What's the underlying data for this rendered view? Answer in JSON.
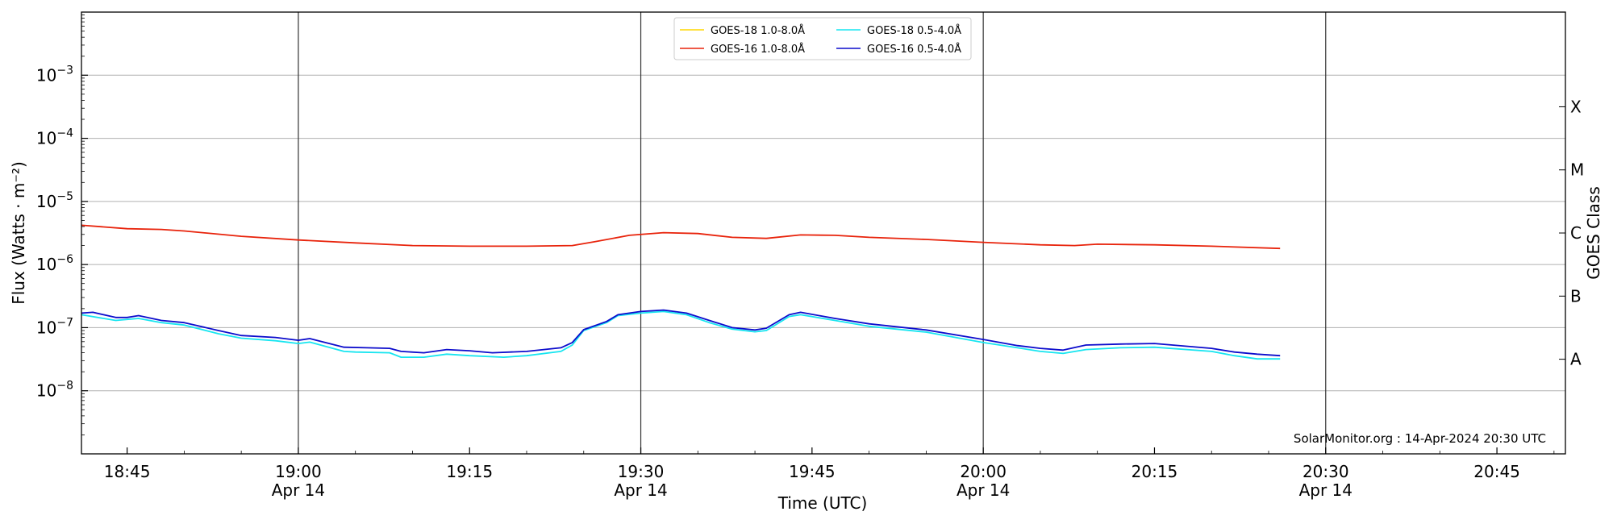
{
  "chart_data": {
    "type": "line",
    "xlabel": "Time (UTC)",
    "ylabel": "Flux (Watts · m⁻²)",
    "y2label": "GOES Class",
    "yscale": "log",
    "xlim": [
      "18:41",
      "20:51"
    ],
    "ylim": [
      1e-09,
      0.01
    ],
    "grid": {
      "y": true,
      "x_vertical_markers": [
        "19:00",
        "19:30",
        "20:00",
        "20:30"
      ]
    },
    "legend": {
      "placement": "top-center",
      "columns": 2
    },
    "x_ticks": [
      {
        "time": "18:45",
        "label": "18:45",
        "date": ""
      },
      {
        "time": "19:00",
        "label": "19:00",
        "date": "Apr 14"
      },
      {
        "time": "19:15",
        "label": "19:15",
        "date": ""
      },
      {
        "time": "19:30",
        "label": "19:30",
        "date": "Apr 14"
      },
      {
        "time": "19:45",
        "label": "19:45",
        "date": ""
      },
      {
        "time": "20:00",
        "label": "20:00",
        "date": "Apr 14"
      },
      {
        "time": "20:15",
        "label": "20:15",
        "date": ""
      },
      {
        "time": "20:30",
        "label": "20:30",
        "date": "Apr 14"
      },
      {
        "time": "20:45",
        "label": "20:45",
        "date": ""
      }
    ],
    "y_ticks": [
      {
        "value": 1e-08,
        "base": "10",
        "exp": "−8"
      },
      {
        "value": 1e-07,
        "base": "10",
        "exp": "−7"
      },
      {
        "value": 1e-06,
        "base": "10",
        "exp": "−6"
      },
      {
        "value": 1e-05,
        "base": "10",
        "exp": "−5"
      },
      {
        "value": 0.0001,
        "base": "10",
        "exp": "−4"
      },
      {
        "value": 0.001,
        "base": "10",
        "exp": "−3"
      }
    ],
    "goes_classes": [
      {
        "label": "A",
        "value": 3.16e-08
      },
      {
        "label": "B",
        "value": 3.16e-07
      },
      {
        "label": "C",
        "value": 3.16e-06
      },
      {
        "label": "M",
        "value": 3.16e-05
      },
      {
        "label": "X",
        "value": 0.000316
      }
    ],
    "annotation": "SolarMonitor.org : 14-Apr-2024 20:30 UTC",
    "series": [
      {
        "name": "GOES-18 1.0-8.0Å",
        "color": "#ffd700",
        "points": []
      },
      {
        "name": "GOES-16 1.0-8.0Å",
        "color": "#e8230b",
        "points": [
          [
            "18:41",
            4.2e-06
          ],
          [
            "18:45",
            3.7e-06
          ],
          [
            "18:48",
            3.6e-06
          ],
          [
            "18:50",
            3.4e-06
          ],
          [
            "18:55",
            2.8e-06
          ],
          [
            "19:00",
            2.45e-06
          ],
          [
            "19:05",
            2.2e-06
          ],
          [
            "19:10",
            2e-06
          ],
          [
            "19:15",
            1.95e-06
          ],
          [
            "19:20",
            1.95e-06
          ],
          [
            "19:24",
            2e-06
          ],
          [
            "19:26",
            2.3e-06
          ],
          [
            "19:29",
            2.9e-06
          ],
          [
            "19:32",
            3.2e-06
          ],
          [
            "19:35",
            3.1e-06
          ],
          [
            "19:38",
            2.7e-06
          ],
          [
            "19:41",
            2.6e-06
          ],
          [
            "19:44",
            2.95e-06
          ],
          [
            "19:47",
            2.9e-06
          ],
          [
            "19:50",
            2.7e-06
          ],
          [
            "19:55",
            2.5e-06
          ],
          [
            "20:00",
            2.25e-06
          ],
          [
            "20:05",
            2.05e-06
          ],
          [
            "20:08",
            2e-06
          ],
          [
            "20:10",
            2.1e-06
          ],
          [
            "20:15",
            2.05e-06
          ],
          [
            "20:20",
            1.95e-06
          ],
          [
            "20:26",
            1.8e-06
          ]
        ]
      },
      {
        "name": "GOES-18 0.5-4.0Å",
        "color": "#17e5f0",
        "points": [
          [
            "18:41",
            1.6e-07
          ],
          [
            "18:44",
            1.3e-07
          ],
          [
            "18:46",
            1.4e-07
          ],
          [
            "18:48",
            1.2e-07
          ],
          [
            "18:50",
            1.1e-07
          ],
          [
            "18:53",
            8e-08
          ],
          [
            "18:55",
            6.8e-08
          ],
          [
            "18:58",
            6.2e-08
          ],
          [
            "19:00",
            5.6e-08
          ],
          [
            "19:01",
            5.9e-08
          ],
          [
            "19:04",
            4.2e-08
          ],
          [
            "19:05",
            4.1e-08
          ],
          [
            "19:08",
            4e-08
          ],
          [
            "19:09",
            3.4e-08
          ],
          [
            "19:11",
            3.4e-08
          ],
          [
            "19:13",
            3.8e-08
          ],
          [
            "19:15",
            3.6e-08
          ],
          [
            "19:18",
            3.4e-08
          ],
          [
            "19:20",
            3.6e-08
          ],
          [
            "19:23",
            4.2e-08
          ],
          [
            "19:24",
            5.3e-08
          ],
          [
            "19:25",
            9e-08
          ],
          [
            "19:27",
            1.2e-07
          ],
          [
            "19:28",
            1.55e-07
          ],
          [
            "19:30",
            1.7e-07
          ],
          [
            "19:32",
            1.8e-07
          ],
          [
            "19:34",
            1.6e-07
          ],
          [
            "19:36",
            1.2e-07
          ],
          [
            "19:38",
            9.5e-08
          ],
          [
            "19:40",
            8.6e-08
          ],
          [
            "19:41",
            9e-08
          ],
          [
            "19:43",
            1.5e-07
          ],
          [
            "19:44",
            1.6e-07
          ],
          [
            "19:47",
            1.3e-07
          ],
          [
            "19:50",
            1.05e-07
          ],
          [
            "19:55",
            8.5e-08
          ],
          [
            "20:00",
            5.8e-08
          ],
          [
            "20:03",
            4.8e-08
          ],
          [
            "20:05",
            4.2e-08
          ],
          [
            "20:07",
            3.9e-08
          ],
          [
            "20:09",
            4.5e-08
          ],
          [
            "20:12",
            4.8e-08
          ],
          [
            "20:15",
            4.9e-08
          ],
          [
            "20:20",
            4.2e-08
          ],
          [
            "20:22",
            3.6e-08
          ],
          [
            "20:24",
            3.2e-08
          ],
          [
            "20:26",
            3.2e-08
          ]
        ]
      },
      {
        "name": "GOES-16 0.5-4.0Å",
        "color": "#0c0ccc",
        "points": [
          [
            "18:41",
            1.7e-07
          ],
          [
            "18:42",
            1.75e-07
          ],
          [
            "18:44",
            1.45e-07
          ],
          [
            "18:45",
            1.45e-07
          ],
          [
            "18:46",
            1.55e-07
          ],
          [
            "18:48",
            1.3e-07
          ],
          [
            "18:50",
            1.2e-07
          ],
          [
            "18:53",
            9e-08
          ],
          [
            "18:55",
            7.5e-08
          ],
          [
            "18:58",
            7e-08
          ],
          [
            "19:00",
            6.3e-08
          ],
          [
            "19:01",
            6.7e-08
          ],
          [
            "19:04",
            4.9e-08
          ],
          [
            "19:06",
            4.8e-08
          ],
          [
            "19:08",
            4.7e-08
          ],
          [
            "19:09",
            4.2e-08
          ],
          [
            "19:11",
            4e-08
          ],
          [
            "19:13",
            4.5e-08
          ],
          [
            "19:15",
            4.3e-08
          ],
          [
            "19:17",
            4e-08
          ],
          [
            "19:20",
            4.2e-08
          ],
          [
            "19:23",
            4.8e-08
          ],
          [
            "19:24",
            5.8e-08
          ],
          [
            "19:25",
            9.3e-08
          ],
          [
            "19:27",
            1.25e-07
          ],
          [
            "19:28",
            1.6e-07
          ],
          [
            "19:30",
            1.8e-07
          ],
          [
            "19:32",
            1.9e-07
          ],
          [
            "19:34",
            1.7e-07
          ],
          [
            "19:36",
            1.3e-07
          ],
          [
            "19:38",
            1e-07
          ],
          [
            "19:40",
            9.2e-08
          ],
          [
            "19:41",
            9.8e-08
          ],
          [
            "19:43",
            1.6e-07
          ],
          [
            "19:44",
            1.75e-07
          ],
          [
            "19:47",
            1.4e-07
          ],
          [
            "19:50",
            1.15e-07
          ],
          [
            "19:55",
            9.2e-08
          ],
          [
            "20:00",
            6.5e-08
          ],
          [
            "20:03",
            5.2e-08
          ],
          [
            "20:05",
            4.7e-08
          ],
          [
            "20:07",
            4.4e-08
          ],
          [
            "20:09",
            5.3e-08
          ],
          [
            "20:12",
            5.5e-08
          ],
          [
            "20:15",
            5.6e-08
          ],
          [
            "20:20",
            4.7e-08
          ],
          [
            "20:22",
            4.1e-08
          ],
          [
            "20:24",
            3.8e-08
          ],
          [
            "20:26",
            3.6e-08
          ]
        ]
      }
    ]
  }
}
